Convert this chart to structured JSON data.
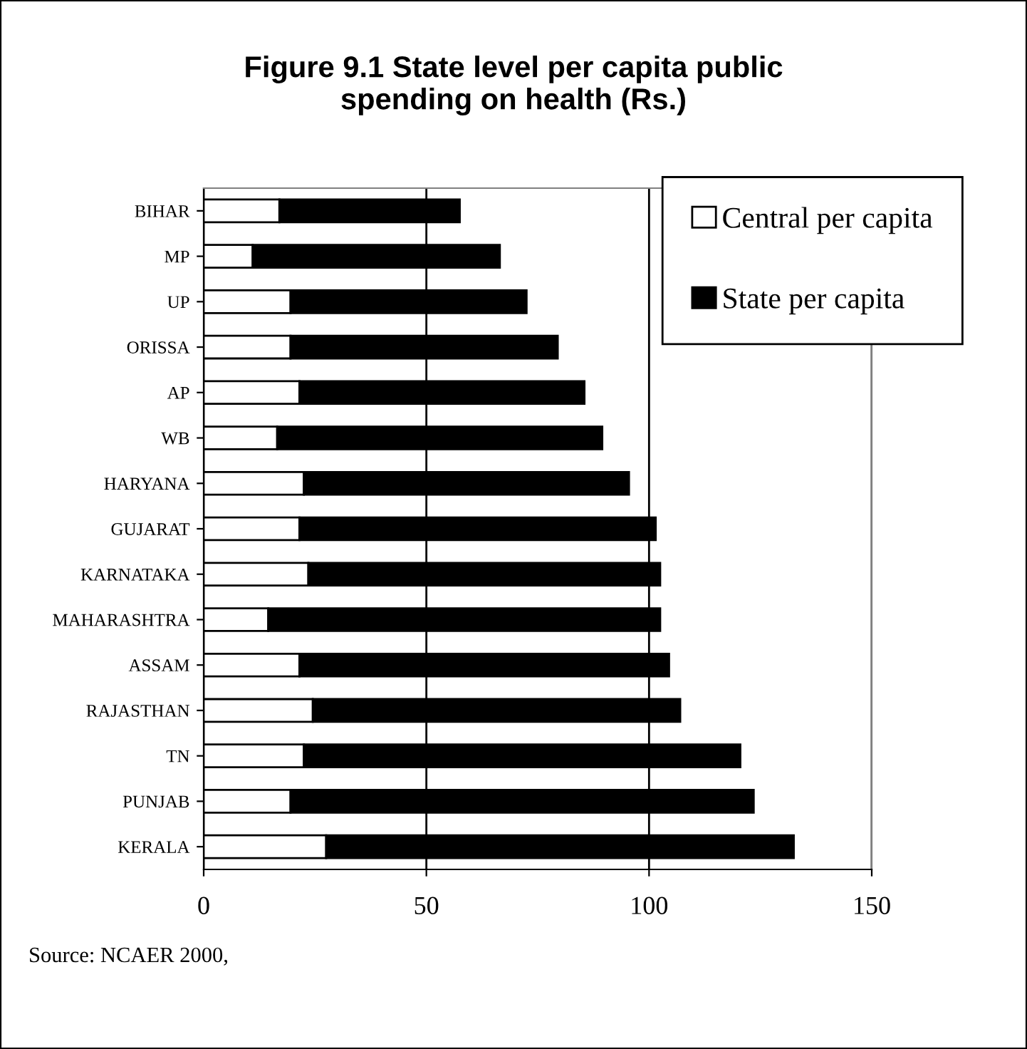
{
  "chart_data": {
    "type": "bar",
    "orientation": "horizontal",
    "stacked": true,
    "title": "Figure 9.1 State level per capita public\nspending on health (Rs.)",
    "categories": [
      "BIHAR",
      "MP",
      "UP",
      "ORISSA",
      "AP",
      "WB",
      "HARYANA",
      "GUJARAT",
      "KARNATAKA",
      "MAHARASHTRA",
      "ASSAM",
      "RAJASTHAN",
      "TN",
      "PUNJAB",
      "KERALA"
    ],
    "series": [
      {
        "name": "Central per capita",
        "color": "#ffffff",
        "values": [
          17,
          11,
          19.5,
          19.5,
          21.5,
          16.5,
          22.5,
          21.5,
          23.5,
          14.5,
          21.5,
          24.5,
          22.5,
          19.5,
          27.5
        ]
      },
      {
        "name": "State per capita",
        "color": "#000000",
        "values": [
          40.5,
          55.5,
          53,
          60,
          64,
          73,
          73,
          80,
          79,
          88,
          83,
          82.5,
          98,
          104,
          105
        ]
      }
    ],
    "xlim": [
      0,
      150
    ],
    "xticks": [
      0,
      50,
      100,
      150
    ],
    "grid": "x",
    "legend": "top right",
    "annotations": [
      "Source: NCAER 2000,"
    ]
  }
}
